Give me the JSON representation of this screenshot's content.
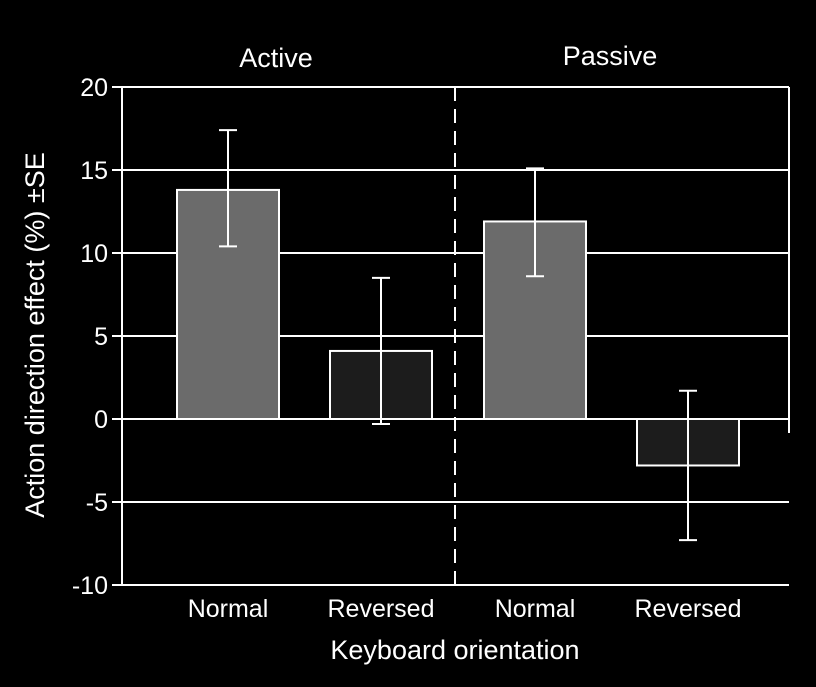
{
  "chart_data": {
    "type": "bar",
    "xlabel": "Keyboard orientation",
    "ylabel": "Action direction effect (%) ±SE",
    "ylim": [
      -10,
      20
    ],
    "yticks": [
      20,
      15,
      10,
      5,
      0,
      -5,
      -10
    ],
    "grid": true,
    "panels": [
      {
        "title": "Active",
        "bars": [
          {
            "category": "Normal",
            "value": 13.8,
            "error_low": 10.4,
            "error_high": 17.4,
            "color": "#6b6b6b"
          },
          {
            "category": "Reversed",
            "value": 4.1,
            "error_low": -0.3,
            "error_high": 8.5,
            "color": "#1c1c1c"
          }
        ]
      },
      {
        "title": "Passive",
        "bars": [
          {
            "category": "Normal",
            "value": 11.9,
            "error_low": 8.6,
            "error_high": 15.1,
            "color": "#6b6b6b"
          },
          {
            "category": "Reversed",
            "value": -2.8,
            "error_low": -7.3,
            "error_high": 1.7,
            "color": "#1c1c1c"
          }
        ]
      }
    ]
  },
  "colors": {
    "background": "#000000",
    "foreground": "#ffffff",
    "normal_bar": "#6b6b6b",
    "reversed_bar": "#1c1c1c"
  }
}
